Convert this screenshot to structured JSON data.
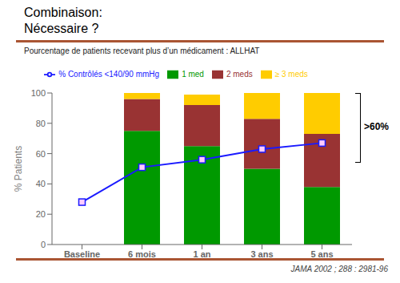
{
  "chart_data": {
    "type": "bar",
    "title": "Combinaison:\nNécessaire ?",
    "subtitle": "Pourcentage de patients recevant plus d’un médicament : ALLHAT",
    "categories": [
      "Baseline",
      "6 mois",
      "1 an",
      "3 ans",
      "5 ans"
    ],
    "series": [
      {
        "name": "1 med",
        "color": "#009900",
        "values": [
          null,
          75,
          65,
          50,
          38
        ]
      },
      {
        "name": "2 meds",
        "color": "#993333",
        "values": [
          null,
          21,
          27,
          33,
          35
        ]
      },
      {
        "name": "≥ 3 meds",
        "color": "#FFCC00",
        "values": [
          null,
          4,
          7,
          17,
          27
        ]
      },
      {
        "name": "% Contrôlés <140/90 mmHg",
        "type": "line",
        "color": "#1a1aff",
        "marker": "square",
        "values": [
          28,
          51,
          56,
          63,
          67
        ]
      }
    ],
    "stacked": true,
    "ylabel": "% Patients",
    "ylim": [
      0,
      100
    ],
    "yticks": [
      0,
      20,
      40,
      60,
      80,
      100
    ],
    "grid": false,
    "legend": "top",
    "annotations": [
      ">60%",
      "JAMA 2002 ; 288 : 2981-96"
    ]
  }
}
